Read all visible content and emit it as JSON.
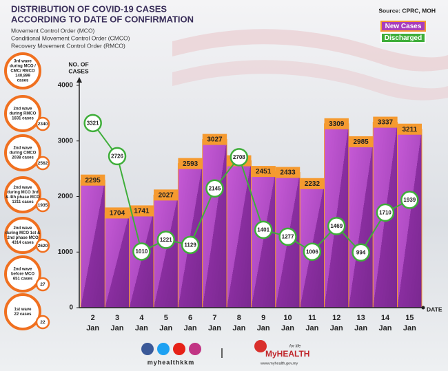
{
  "header": {
    "title": [
      "DISTRIBUTION OF COVID-19 CASES",
      "ACCORDING TO DATE OF CONFIRMATION"
    ],
    "subtitle": [
      "Movement Control Order (MCO)",
      "Conditional Movement Control Order (CMCO)",
      "Recovery Movement Control Order (RMCO)"
    ],
    "source": "Source: CPRC, MOH"
  },
  "waves": [
    {
      "lines": [
        "3rd wave",
        "during MCO /",
        "CMC/ RMCO",
        "140,899",
        "cases"
      ]
    },
    {
      "lines": [
        "2nd wave",
        "during RMCO",
        "1831 cases"
      ],
      "count": 2340
    },
    {
      "lines": [
        "2nd wave",
        "during CMCO",
        "2038 cases"
      ],
      "count": 2562
    },
    {
      "lines": [
        "2nd wave",
        "during MCO 3rd",
        "& 4th phase MCO",
        "1311 cases"
      ],
      "count": 1935
    },
    {
      "lines": [
        "2nd wave",
        "during MCO 1st &",
        "2nd phase MCO",
        "4314 cases"
      ],
      "count": 2620
    },
    {
      "lines": [
        "2nd wave",
        "before MCO",
        "651 cases"
      ],
      "count": 27
    },
    {
      "lines": [
        "1st wave",
        "22 cases"
      ],
      "count": 22
    }
  ],
  "chart_data": {
    "type": "bar",
    "y_label": [
      "NO. OF",
      "CASES"
    ],
    "x_label": "DATE",
    "categories": [
      "2",
      "3",
      "4",
      "5",
      "6",
      "7",
      "8",
      "9",
      "10",
      "11",
      "12",
      "13",
      "14",
      "15"
    ],
    "month": "Jan",
    "ylim": [
      0,
      4000
    ],
    "yticks": [
      0,
      1000,
      2000,
      3000,
      4000
    ],
    "series": [
      {
        "name": "New Cases",
        "type": "bar",
        "color": "#a83cbc",
        "values": [
          2295,
          1704,
          1741,
          2027,
          2593,
          3027,
          2643,
          2451,
          2433,
          2232,
          3309,
          2985,
          3337,
          3211
        ]
      },
      {
        "name": "Discharged",
        "type": "line",
        "color": "#3fae3a",
        "values": [
          3321,
          2726,
          1010,
          1221,
          1129,
          2145,
          2708,
          1401,
          1277,
          1006,
          1469,
          994,
          1710,
          1939
        ]
      }
    ]
  },
  "footer": {
    "handle": "myhealthkkm",
    "brand": "MyHEALTH",
    "tagline": "for life",
    "url": "www.myhealth.gov.my"
  }
}
